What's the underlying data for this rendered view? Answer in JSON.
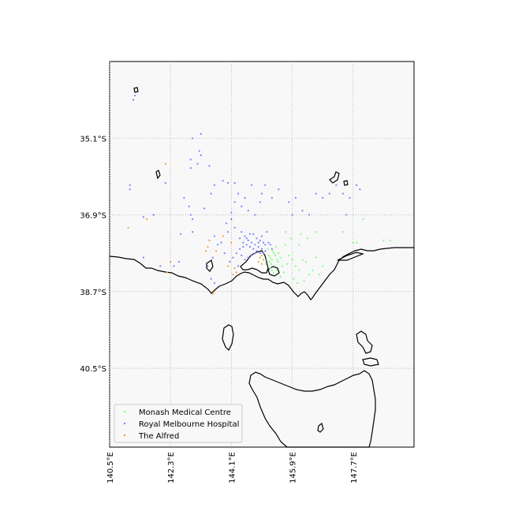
{
  "chart_data": {
    "type": "scatter",
    "map_projection": "cylindrical",
    "lon_range": [
      140.5,
      149.5
    ],
    "lat_range": [
      -42.35,
      -33.3
    ],
    "grid": true,
    "grid_style": "dotted",
    "legend_placement": "bottom-left",
    "x_ticks": [
      {
        "value": 140.5,
        "label": "140.5°E"
      },
      {
        "value": 142.3,
        "label": "142.3°E"
      },
      {
        "value": 144.1,
        "label": "144.1°E"
      },
      {
        "value": 145.9,
        "label": "145.9°E"
      },
      {
        "value": 147.7,
        "label": "147.7°E"
      }
    ],
    "y_ticks": [
      {
        "value": -35.1,
        "label": "35.1°S"
      },
      {
        "value": -36.9,
        "label": "36.9°S"
      },
      {
        "value": -38.7,
        "label": "38.7°S"
      },
      {
        "value": -40.5,
        "label": "40.5°S"
      }
    ],
    "series": [
      {
        "name": "Monash Medical Centre",
        "color": "#7fff7f",
        "points": [
          [
            145.2,
            -37.85
          ],
          [
            145.25,
            -37.9
          ],
          [
            145.3,
            -37.95
          ],
          [
            145.35,
            -37.8
          ],
          [
            145.22,
            -38.0
          ],
          [
            145.28,
            -38.05
          ],
          [
            145.32,
            -37.75
          ],
          [
            145.18,
            -37.7
          ],
          [
            145.4,
            -37.85
          ],
          [
            145.45,
            -37.95
          ],
          [
            145.38,
            -38.1
          ],
          [
            145.25,
            -38.15
          ],
          [
            145.15,
            -37.95
          ],
          [
            145.12,
            -38.05
          ],
          [
            145.3,
            -38.2
          ],
          [
            145.42,
            -37.65
          ],
          [
            145.5,
            -37.8
          ],
          [
            145.55,
            -37.9
          ],
          [
            145.48,
            -38.0
          ],
          [
            145.6,
            -38.1
          ],
          [
            145.7,
            -37.6
          ],
          [
            145.8,
            -37.85
          ],
          [
            145.9,
            -37.95
          ],
          [
            146.0,
            -38.1
          ],
          [
            146.1,
            -38.2
          ],
          [
            146.2,
            -37.95
          ],
          [
            146.3,
            -38.0
          ],
          [
            146.4,
            -38.3
          ],
          [
            146.5,
            -38.2
          ],
          [
            146.6,
            -37.9
          ],
          [
            146.7,
            -38.3
          ],
          [
            146.8,
            -38.1
          ],
          [
            145.95,
            -38.4
          ],
          [
            146.05,
            -38.5
          ],
          [
            146.25,
            -38.45
          ],
          [
            145.85,
            -37.45
          ],
          [
            146.15,
            -37.35
          ],
          [
            146.35,
            -37.45
          ],
          [
            145.7,
            -37.3
          ],
          [
            147.4,
            -37.3
          ],
          [
            147.7,
            -37.55
          ],
          [
            147.8,
            -37.55
          ],
          [
            148.0,
            -37.0
          ],
          [
            148.6,
            -37.5
          ],
          [
            148.8,
            -37.5
          ],
          [
            146.6,
            -37.3
          ],
          [
            146.1,
            -37.6
          ],
          [
            145.75,
            -38.05
          ],
          [
            145.65,
            -38.25
          ],
          [
            145.55,
            -38.35
          ],
          [
            145.45,
            -38.2
          ],
          [
            145.35,
            -38.25
          ]
        ]
      },
      {
        "name": "Royal Melbourne Hospital",
        "color": "#7f7fff",
        "points": [
          [
            141.25,
            -34.1
          ],
          [
            141.2,
            -34.2
          ],
          [
            143.2,
            -35.0
          ],
          [
            143.15,
            -35.4
          ],
          [
            142.95,
            -35.1
          ],
          [
            142.9,
            -35.6
          ],
          [
            142.9,
            -35.8
          ],
          [
            143.1,
            -35.7
          ],
          [
            143.2,
            -35.5
          ],
          [
            143.45,
            -35.75
          ],
          [
            141.1,
            -36.2
          ],
          [
            141.1,
            -36.3
          ],
          [
            142.15,
            -36.15
          ],
          [
            141.5,
            -36.95
          ],
          [
            141.8,
            -36.9
          ],
          [
            142.7,
            -36.5
          ],
          [
            142.85,
            -36.7
          ],
          [
            142.9,
            -36.9
          ],
          [
            142.95,
            -37.0
          ],
          [
            142.6,
            -37.35
          ],
          [
            142.95,
            -37.3
          ],
          [
            143.3,
            -36.75
          ],
          [
            143.5,
            -36.4
          ],
          [
            143.85,
            -36.1
          ],
          [
            144.0,
            -36.15
          ],
          [
            144.2,
            -36.15
          ],
          [
            143.6,
            -36.2
          ],
          [
            144.3,
            -36.4
          ],
          [
            144.5,
            -36.5
          ],
          [
            144.6,
            -36.8
          ],
          [
            144.7,
            -36.2
          ],
          [
            144.95,
            -36.6
          ],
          [
            145.0,
            -36.4
          ],
          [
            145.1,
            -36.2
          ],
          [
            145.3,
            -36.5
          ],
          [
            145.5,
            -36.3
          ],
          [
            145.8,
            -36.6
          ],
          [
            145.9,
            -36.9
          ],
          [
            146.0,
            -36.5
          ],
          [
            146.2,
            -36.8
          ],
          [
            146.4,
            -36.9
          ],
          [
            146.6,
            -36.4
          ],
          [
            146.8,
            -36.5
          ],
          [
            147.0,
            -36.4
          ],
          [
            147.2,
            -36.2
          ],
          [
            147.4,
            -36.4
          ],
          [
            147.6,
            -36.5
          ],
          [
            147.8,
            -36.2
          ],
          [
            147.9,
            -36.3
          ],
          [
            147.5,
            -36.9
          ],
          [
            144.8,
            -36.9
          ],
          [
            144.4,
            -36.7
          ],
          [
            144.1,
            -37.0
          ],
          [
            144.2,
            -37.2
          ],
          [
            144.4,
            -37.3
          ],
          [
            144.5,
            -37.4
          ],
          [
            144.6,
            -37.5
          ],
          [
            144.7,
            -37.55
          ],
          [
            144.8,
            -37.6
          ],
          [
            144.9,
            -37.65
          ],
          [
            145.0,
            -37.7
          ],
          [
            145.1,
            -37.75
          ],
          [
            144.85,
            -37.75
          ],
          [
            144.95,
            -37.8
          ],
          [
            145.05,
            -37.8
          ],
          [
            144.75,
            -37.7
          ],
          [
            144.65,
            -37.65
          ],
          [
            144.55,
            -37.6
          ],
          [
            144.45,
            -37.55
          ],
          [
            144.35,
            -37.7
          ],
          [
            144.25,
            -37.8
          ],
          [
            144.15,
            -37.9
          ],
          [
            144.05,
            -38.0
          ],
          [
            144.3,
            -38.1
          ],
          [
            143.9,
            -37.8
          ],
          [
            143.8,
            -37.55
          ],
          [
            143.7,
            -37.6
          ],
          [
            143.6,
            -37.4
          ],
          [
            143.55,
            -37.9
          ],
          [
            143.4,
            -38.1
          ],
          [
            143.5,
            -38.4
          ],
          [
            143.6,
            -38.5
          ],
          [
            142.55,
            -38.0
          ],
          [
            142.4,
            -38.1
          ],
          [
            142.0,
            -38.1
          ],
          [
            141.5,
            -37.9
          ],
          [
            144.0,
            -37.3
          ],
          [
            143.95,
            -37.1
          ],
          [
            144.2,
            -36.6
          ],
          [
            144.1,
            -36.85
          ],
          [
            145.2,
            -37.55
          ],
          [
            145.15,
            -37.3
          ],
          [
            145.0,
            -37.4
          ],
          [
            144.95,
            -37.5
          ],
          [
            144.85,
            -37.45
          ],
          [
            144.75,
            -37.35
          ],
          [
            144.65,
            -37.35
          ],
          [
            144.55,
            -37.45
          ],
          [
            144.45,
            -37.65
          ],
          [
            144.35,
            -37.45
          ],
          [
            145.25,
            -37.6
          ],
          [
            145.3,
            -37.7
          ],
          [
            145.1,
            -37.6
          ],
          [
            145.05,
            -37.55
          ],
          [
            144.9,
            -37.55
          ],
          [
            144.8,
            -37.8
          ],
          [
            144.7,
            -37.85
          ],
          [
            144.6,
            -37.9
          ],
          [
            144.5,
            -37.95
          ],
          [
            144.4,
            -37.85
          ]
        ]
      },
      {
        "name": "The Alfred",
        "color": "#f0a040",
        "points": [
          [
            142.15,
            -35.7
          ],
          [
            141.05,
            -37.2
          ],
          [
            141.6,
            -37.0
          ],
          [
            142.3,
            -38.0
          ],
          [
            143.4,
            -37.65
          ],
          [
            143.35,
            -37.75
          ],
          [
            143.65,
            -37.75
          ],
          [
            143.85,
            -37.4
          ],
          [
            144.2,
            -38.15
          ],
          [
            144.25,
            -38.25
          ],
          [
            144.15,
            -38.3
          ],
          [
            143.6,
            -38.7
          ],
          [
            143.55,
            -38.75
          ],
          [
            144.0,
            -38.1
          ],
          [
            145.0,
            -37.85
          ],
          [
            144.95,
            -37.9
          ],
          [
            145.05,
            -37.95
          ],
          [
            144.9,
            -38.0
          ],
          [
            145.0,
            -38.05
          ],
          [
            142.2,
            -38.25
          ],
          [
            144.1,
            -37.55
          ],
          [
            143.45,
            -37.5
          ]
        ]
      }
    ]
  },
  "legend": {
    "items": [
      {
        "label": "Monash Medical Centre"
      },
      {
        "label": "Royal Melbourne Hospital"
      },
      {
        "label": "The Alfred"
      }
    ]
  }
}
